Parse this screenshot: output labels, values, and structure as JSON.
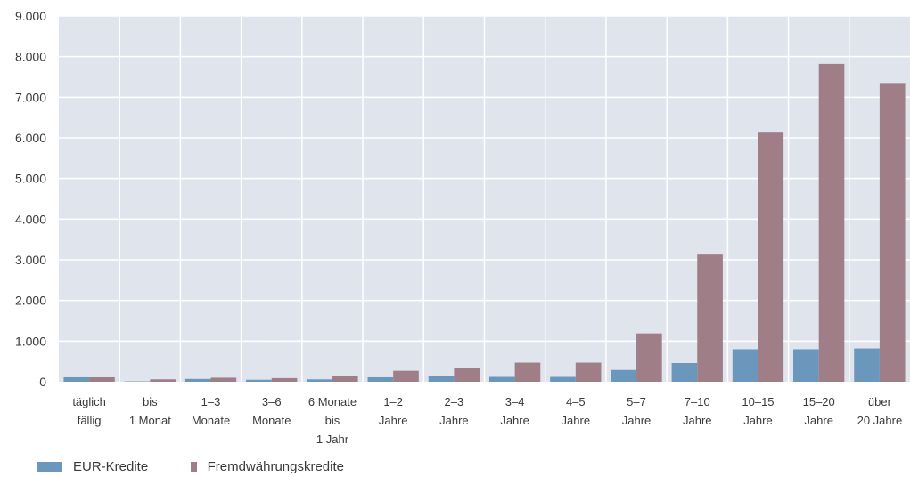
{
  "chart_data": {
    "type": "bar",
    "title": "",
    "xlabel": "",
    "ylabel": "",
    "ylim": [
      0,
      9000
    ],
    "y_ticks": [
      "0",
      "1.000",
      "2.000",
      "3.000",
      "4.000",
      "5.000",
      "6.000",
      "7.000",
      "8.000",
      "9.000"
    ],
    "y_tick_values": [
      0,
      1000,
      2000,
      3000,
      4000,
      5000,
      6000,
      7000,
      8000,
      9000
    ],
    "grid": true,
    "legend_position": "bottom-left",
    "categories": [
      [
        "täglich",
        "fällig"
      ],
      [
        "bis",
        "1 Monat"
      ],
      [
        "1–3",
        "Monate"
      ],
      [
        "3–6",
        "Monate"
      ],
      [
        "6 Monate",
        "bis",
        "1 Jahr"
      ],
      [
        "1–2",
        "Jahre"
      ],
      [
        "2–3",
        "Jahre"
      ],
      [
        "3–4",
        "Jahre"
      ],
      [
        "4–5",
        "Jahre"
      ],
      [
        "5–7",
        "Jahre"
      ],
      [
        "7–10",
        "Jahre"
      ],
      [
        "10–15",
        "Jahre"
      ],
      [
        "15–20",
        "Jahre"
      ],
      [
        "über",
        "20 Jahre"
      ]
    ],
    "series": [
      {
        "name": "EUR-Kredite",
        "color": "#6b97bd",
        "values": [
          110,
          10,
          70,
          50,
          60,
          110,
          140,
          120,
          120,
          290,
          460,
          800,
          800,
          820
        ]
      },
      {
        "name": "Fremdwährungskredite",
        "color": "#a07e88",
        "values": [
          110,
          60,
          100,
          90,
          140,
          270,
          330,
          470,
          470,
          1190,
          3150,
          6150,
          7820,
          7350
        ]
      }
    ]
  }
}
